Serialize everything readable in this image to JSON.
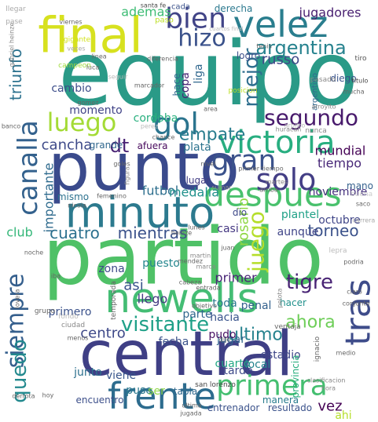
{
  "cloud": {
    "words": [
      {
        "text": "equipo",
        "color": "#2a9a87"
      },
      {
        "text": "partido",
        "color": "#4fc167"
      },
      {
        "text": "punto",
        "color": "#3a4a8c"
      },
      {
        "text": "central",
        "color": "#3f3f85"
      },
      {
        "text": "newells",
        "color": "#44bd74"
      },
      {
        "text": "final",
        "color": "#d7e11f"
      },
      {
        "text": "minuto",
        "color": "#2c7a8e"
      },
      {
        "text": "frente",
        "color": "#2d6c8e"
      },
      {
        "text": "velez",
        "color": "#2a7e8e"
      },
      {
        "text": "victoria",
        "color": "#28ae80"
      },
      {
        "text": "despues",
        "color": "#49c16d"
      },
      {
        "text": "canalla",
        "color": "#33618d"
      },
      {
        "text": "luego",
        "color": "#a4db36"
      },
      {
        "text": "gol",
        "color": "#2b748e"
      },
      {
        "text": "gran",
        "color": "#3b528b"
      },
      {
        "text": "solo",
        "color": "#433e85"
      },
      {
        "text": "tras",
        "color": "#3e4c8a"
      },
      {
        "text": "primera",
        "color": "#44bf70"
      },
      {
        "text": "siempre",
        "color": "#355f8d"
      },
      {
        "text": "bien",
        "color": "#414487"
      },
      {
        "text": "hizo",
        "color": "#3b528b"
      },
      {
        "text": "argentina",
        "color": "#26828e"
      },
      {
        "text": "mejor",
        "color": "#2e6e8e"
      },
      {
        "text": "segundo",
        "color": "#481a6c"
      },
      {
        "text": "empate",
        "color": "#287d8e"
      },
      {
        "text": "tigre",
        "color": "#482374"
      },
      {
        "text": "visitante",
        "color": "#1fa088"
      },
      {
        "text": "cuatro",
        "color": "#2c718e"
      },
      {
        "text": "mientras",
        "color": "#3b528b"
      },
      {
        "text": "juego",
        "color": "#b5de2b"
      },
      {
        "text": "torneo",
        "color": "#3b528b"
      },
      {
        "text": "ahora",
        "color": "#6ece58"
      },
      {
        "text": "ultimo",
        "color": "#26828e"
      },
      {
        "text": "centro",
        "color": "#3e4989"
      },
      {
        "text": "quedo",
        "color": "#23898e"
      },
      {
        "text": "dt",
        "color": "#482173"
      },
      {
        "text": "cancha",
        "color": "#3e4a89"
      },
      {
        "text": "club",
        "color": "#35b779"
      },
      {
        "text": "rosario",
        "color": "#8fd744"
      },
      {
        "text": "russo",
        "color": "#3f4788"
      },
      {
        "text": "jugadores",
        "color": "#481f70"
      },
      {
        "text": "ademas",
        "color": "#3dbc74"
      },
      {
        "text": "triunfo",
        "color": "#2c728e"
      },
      {
        "text": "mundial",
        "color": "#440154"
      },
      {
        "text": "tiempo",
        "color": "#482878"
      },
      {
        "text": "noviembre",
        "color": "#46327e"
      },
      {
        "text": "octubre",
        "color": "#404688"
      },
      {
        "text": "plantel",
        "color": "#1fa187"
      },
      {
        "text": "vez",
        "color": "#440154"
      },
      {
        "text": "ahi",
        "color": "#b5de2b"
      },
      {
        "text": "asi",
        "color": "#3a548c"
      },
      {
        "text": "llego",
        "color": "#443a83"
      },
      {
        "text": "parte",
        "color": "#31668e"
      },
      {
        "text": "primer",
        "color": "#482576"
      },
      {
        "text": "fecha",
        "color": "#3b528b"
      },
      {
        "text": "jugar",
        "color": "#32658e"
      },
      {
        "text": "cuarto",
        "color": "#22a884"
      },
      {
        "text": "estadio",
        "color": "#3f4788"
      },
      {
        "text": "provincia",
        "color": "#29af7f"
      },
      {
        "text": "tarde",
        "color": "#3e4a89"
      },
      {
        "text": "viene",
        "color": "#39568c"
      },
      {
        "text": "puso",
        "color": "#2a788e"
      },
      {
        "text": "ser",
        "color": "#8fd744"
      },
      {
        "text": "tabla",
        "color": "#30698e"
      },
      {
        "text": "junto",
        "color": "#2d708e"
      },
      {
        "text": "encuentro",
        "color": "#3c4f8a"
      },
      {
        "text": "manera",
        "color": "#287c8e"
      },
      {
        "text": "local",
        "color": "#25848e"
      },
      {
        "text": "importante",
        "color": "#2f6b8e"
      },
      {
        "text": "futbol",
        "color": "#2e6f8e"
      },
      {
        "text": "medalla",
        "color": "#21918c"
      },
      {
        "text": "momento",
        "color": "#404387"
      },
      {
        "text": "cordoba",
        "color": "#2ab07f"
      },
      {
        "text": "plata",
        "color": "#2c738e"
      },
      {
        "text": "copa",
        "color": "#482374"
      },
      {
        "text": "liga",
        "color": "#31688e"
      },
      {
        "text": "cambio",
        "color": "#3d4e8a"
      },
      {
        "text": "aunque",
        "color": "#404588"
      },
      {
        "text": "penal",
        "color": "#34618d"
      },
      {
        "text": "pudo",
        "color": "#471063"
      },
      {
        "text": "hacia",
        "color": "#3a548c"
      },
      {
        "text": "hacer",
        "color": "#21918c"
      },
      {
        "text": "casi",
        "color": "#453882"
      },
      {
        "text": "toda",
        "color": "#2a788e"
      },
      {
        "text": "primero",
        "color": "#3b528b"
      },
      {
        "text": "zona",
        "color": "#3e4989"
      },
      {
        "text": "puesto",
        "color": "#24868e"
      },
      {
        "text": "grande",
        "color": "#31688e"
      },
      {
        "text": "afuera",
        "color": "#46085c"
      },
      {
        "text": "lugar",
        "color": "#433e85"
      },
      {
        "text": "mano",
        "color": "#34618d"
      },
      {
        "text": "dio",
        "color": "#3e4989"
      },
      {
        "text": "mismo",
        "color": "#2c718e"
      },
      {
        "text": "diego",
        "color": "#3a548c"
      },
      {
        "text": "hace",
        "color": "#31688e"
      },
      {
        "text": "logro",
        "color": "#3c4f8a"
      },
      {
        "text": "derecha",
        "color": "#2a788e"
      },
      {
        "text": "paso",
        "color": "#bddf26"
      },
      {
        "text": "cada",
        "color": "#3b528b"
      },
      {
        "text": "santa fe",
        "color": "#4a4a4a"
      },
      {
        "text": "llegar",
        "color": "#aaaaaa"
      },
      {
        "text": "pase",
        "color": "#aaaaaa"
      },
      {
        "text": "campeon",
        "color": "#9fda3a"
      },
      {
        "text": "gigante",
        "color": "#d2e21b"
      },
      {
        "text": "veces",
        "color": "#aaaaaa"
      },
      {
        "text": "marcador",
        "color": "#666666"
      },
      {
        "text": "diferencia",
        "color": "#666666"
      },
      {
        "text": "posicion",
        "color": "#bddf26"
      },
      {
        "text": "pasado",
        "color": "#888888"
      },
      {
        "text": "argentino",
        "color": "#31688e"
      },
      {
        "text": "titulo",
        "color": "#444444"
      },
      {
        "text": "mucha",
        "color": "#666666"
      },
      {
        "text": "tiro",
        "color": "#555555"
      },
      {
        "text": "banco",
        "color": "#666666"
      },
      {
        "text": "gomez",
        "color": "#666666"
      },
      {
        "text": "arbitro",
        "color": "#bbbbbb"
      },
      {
        "text": "nunca",
        "color": "#888888"
      },
      {
        "text": "arroyito",
        "color": "#888888"
      },
      {
        "text": "huracan",
        "color": "#888888"
      },
      {
        "text": "chance",
        "color": "#666666"
      },
      {
        "text": "goles",
        "color": "#666666"
      },
      {
        "text": "figura",
        "color": "#888888"
      },
      {
        "text": "nivel",
        "color": "#666666"
      },
      {
        "text": "primer tiempo",
        "color": "#666666"
      },
      {
        "text": "martes",
        "color": "#888888"
      },
      {
        "text": "arriba",
        "color": "#666666"
      },
      {
        "text": "buena",
        "color": "#cccccc"
      },
      {
        "text": "saco",
        "color": "#666666"
      },
      {
        "text": "carrera",
        "color": "#aaaaaa"
      },
      {
        "text": "femenino",
        "color": "#666666"
      },
      {
        "text": "nicola",
        "color": "#666666"
      },
      {
        "text": "heinze",
        "color": "#666666"
      },
      {
        "text": "lunes",
        "color": "#666666"
      },
      {
        "text": "noche",
        "color": "#666666"
      },
      {
        "text": "temporada",
        "color": "#666666"
      },
      {
        "text": "martin",
        "color": "#888888"
      },
      {
        "text": "mendez",
        "color": "#666666"
      },
      {
        "text": "marca",
        "color": "#888888"
      },
      {
        "text": "lepra",
        "color": "#bbbbbb"
      },
      {
        "text": "podria",
        "color": "#666666"
      },
      {
        "text": "claro",
        "color": "#666666"
      },
      {
        "text": "conjunto",
        "color": "#666666"
      },
      {
        "text": "lovera",
        "color": "#666666"
      },
      {
        "text": "cabeza",
        "color": "#666666"
      },
      {
        "text": "entrada",
        "color": "#666666"
      },
      {
        "text": "pelota",
        "color": "#888888"
      },
      {
        "text": "grupo",
        "color": "#666666"
      },
      {
        "text": "fondo",
        "color": "#bbbbbb"
      },
      {
        "text": "objetivo",
        "color": "#666666"
      },
      {
        "text": "ventaja",
        "color": "#666666"
      },
      {
        "text": "ciudad",
        "color": "#888888"
      },
      {
        "text": "menos",
        "color": "#666666"
      },
      {
        "text": "dijo",
        "color": "#666666"
      },
      {
        "text": "ignacio",
        "color": "#666666"
      },
      {
        "text": "medio",
        "color": "#666666"
      },
      {
        "text": "derrota",
        "color": "#666666"
      },
      {
        "text": "hoy",
        "color": "#666666"
      },
      {
        "text": "ultima",
        "color": "#666666"
      },
      {
        "text": "jugada",
        "color": "#666666"
      },
      {
        "text": "san lorenzo",
        "color": "#444444"
      },
      {
        "text": "entrenador",
        "color": "#3b528b"
      },
      {
        "text": "resultado",
        "color": "#3b528b"
      },
      {
        "text": "clasificacion",
        "color": "#888888"
      },
      {
        "text": "hora",
        "color": "#888888"
      },
      {
        "text": "juan",
        "color": "#666666"
      },
      {
        "text": "sumar",
        "color": "#888888"
      },
      {
        "text": "iba",
        "color": "#666666"
      },
      {
        "text": "seguir",
        "color": "#bbbbbb"
      },
      {
        "text": "linea",
        "color": "#666666"
      },
      {
        "text": "luca",
        "color": "#666666"
      },
      {
        "text": "viernes",
        "color": "#666666"
      },
      {
        "text": "perez",
        "color": "#bbbbbb"
      },
      {
        "text": "area",
        "color": "#666666"
      },
      {
        "text": "tenis",
        "color": "#666666"
      },
      {
        "text": "gabriel heinze",
        "color": "#888888"
      },
      {
        "text": "cuartos final",
        "color": "#bbbbbb"
      }
    ]
  }
}
